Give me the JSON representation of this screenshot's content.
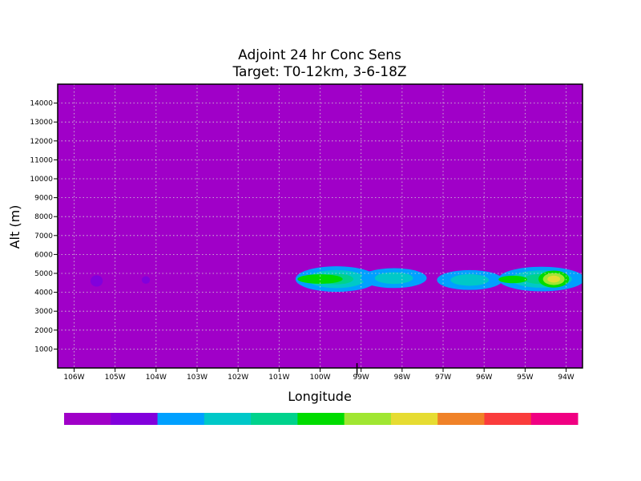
{
  "chart_data": {
    "type": "heatmap",
    "title": "Adjoint 24 hr Conc Sens",
    "subtitle": "Target: T0-12km, 3-6-18Z",
    "xlabel": "Longitude",
    "ylabel": "Alt (m)",
    "xlim": [
      -106.4,
      -93.6
    ],
    "ylim": [
      0,
      15000
    ],
    "grid": true,
    "x_ticks": [
      {
        "value": -106,
        "label": "106W"
      },
      {
        "value": -105,
        "label": "105W"
      },
      {
        "value": -104,
        "label": "104W"
      },
      {
        "value": -103,
        "label": "103W"
      },
      {
        "value": -102,
        "label": "102W"
      },
      {
        "value": -101,
        "label": "101W"
      },
      {
        "value": -100,
        "label": "100W"
      },
      {
        "value": -99,
        "label": "99W"
      },
      {
        "value": -98,
        "label": "98W"
      },
      {
        "value": -97,
        "label": "97W"
      },
      {
        "value": -96,
        "label": "96W"
      },
      {
        "value": -95,
        "label": "95W"
      },
      {
        "value": -94,
        "label": "94W"
      }
    ],
    "y_ticks": [
      1000,
      2000,
      3000,
      4000,
      5000,
      6000,
      7000,
      8000,
      9000,
      10000,
      11000,
      12000,
      13000,
      14000
    ],
    "marker_x": -99.1,
    "color_levels": [
      "#a000c8",
      "#8200dc",
      "#00a0ff",
      "#00c8c8",
      "#00d28c",
      "#00dc00",
      "#a0e632",
      "#e6dc32",
      "#f08228",
      "#fa3c3c",
      "#f00082"
    ],
    "background_level": 0,
    "features": [
      {
        "lon": -99.6,
        "alt": 4700,
        "dlon": 2.0,
        "dalt": 1350,
        "levels": [
          2,
          3,
          4
        ]
      },
      {
        "lon": -98.2,
        "alt": 4750,
        "dlon": 1.6,
        "dalt": 1050,
        "levels": [
          2,
          3
        ]
      },
      {
        "lon": -96.35,
        "alt": 4650,
        "dlon": 1.6,
        "dalt": 1050,
        "levels": [
          2,
          3
        ]
      },
      {
        "lon": -94.6,
        "alt": 4700,
        "dlon": 2.1,
        "dalt": 1300,
        "levels": [
          2,
          3,
          4
        ]
      },
      {
        "lon": -100.0,
        "alt": 4700,
        "dlon": 1.1,
        "dalt": 500,
        "levels": [
          5
        ]
      },
      {
        "lon": -95.3,
        "alt": 4680,
        "dlon": 0.7,
        "dalt": 400,
        "levels": [
          5
        ]
      },
      {
        "lon": -94.3,
        "alt": 4700,
        "dlon": 0.75,
        "dalt": 900,
        "levels": [
          5,
          6,
          7
        ]
      },
      {
        "lon": -105.45,
        "alt": 4600,
        "dlon": 0.3,
        "dalt": 600,
        "levels": [
          1
        ]
      },
      {
        "lon": -104.25,
        "alt": 4650,
        "dlon": 0.2,
        "dalt": 400,
        "levels": [
          1
        ]
      }
    ]
  }
}
